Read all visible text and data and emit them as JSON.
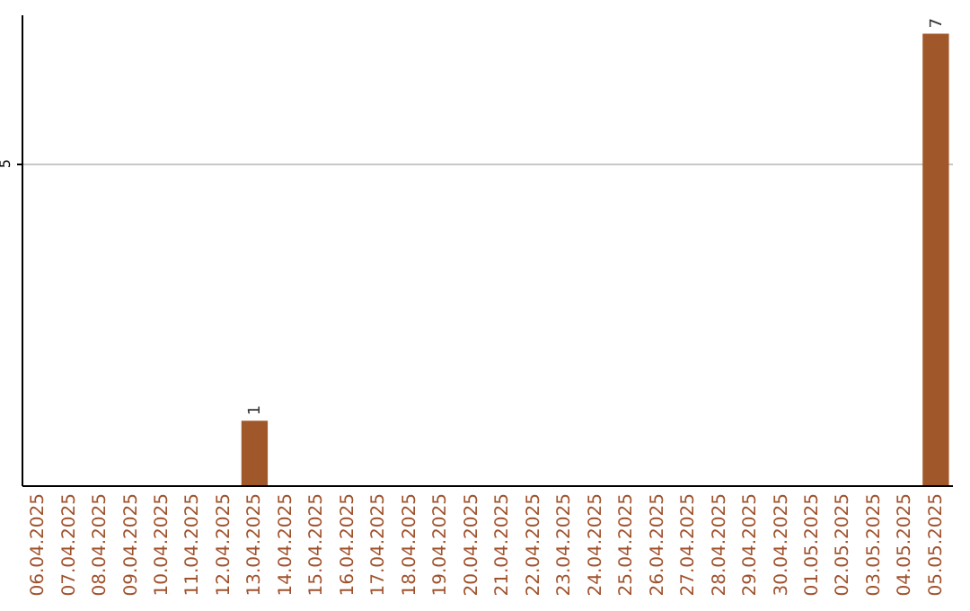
{
  "chart_data": {
    "type": "bar",
    "categories": [
      "06.04.2025",
      "07.04.2025",
      "08.04.2025",
      "09.04.2025",
      "10.04.2025",
      "11.04.2025",
      "12.04.2025",
      "13.04.2025",
      "14.04.2025",
      "15.04.2025",
      "16.04.2025",
      "17.04.2025",
      "18.04.2025",
      "19.04.2025",
      "20.04.2025",
      "21.04.2025",
      "22.04.2025",
      "23.04.2025",
      "24.04.2025",
      "25.04.2025",
      "26.04.2025",
      "27.04.2025",
      "28.04.2025",
      "29.04.2025",
      "30.04.2025",
      "01.05.2025",
      "02.05.2025",
      "03.05.2025",
      "04.05.2025",
      "05.05.2025"
    ],
    "values": [
      0,
      0,
      0,
      0,
      0,
      0,
      0,
      1,
      0,
      0,
      0,
      0,
      0,
      0,
      0,
      0,
      0,
      0,
      0,
      0,
      0,
      0,
      0,
      0,
      0,
      0,
      0,
      0,
      0,
      7
    ],
    "value_labels": [
      null,
      null,
      null,
      null,
      null,
      null,
      null,
      "1",
      null,
      null,
      null,
      null,
      null,
      null,
      null,
      null,
      null,
      null,
      null,
      null,
      null,
      null,
      null,
      null,
      null,
      null,
      null,
      null,
      null,
      "7"
    ],
    "color": "#a0572a",
    "ylim": [
      0,
      7.3
    ],
    "yticks": [
      5
    ],
    "grid": "y"
  }
}
